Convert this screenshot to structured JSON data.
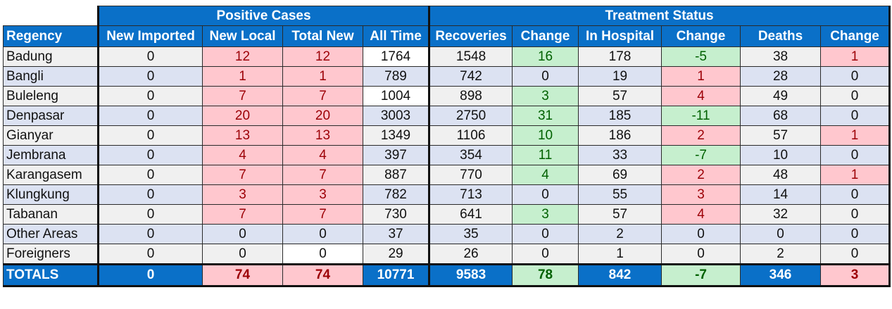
{
  "group_headers": {
    "positive": "Positive Cases",
    "treatment": "Treatment Status"
  },
  "columns": [
    "Regency",
    "New Imported",
    "New Local",
    "Total New",
    "All Time",
    "Recoveries",
    "Change",
    "In Hospital",
    "Change",
    "Deaths",
    "Change"
  ],
  "colors": {
    "header_blue": "#0a70c8",
    "red_fill": "#ffc7ce",
    "red_text": "#9c0006",
    "green_fill": "#c6efce",
    "green_text": "#006100"
  },
  "rows": [
    {
      "regency": "Badung",
      "new_imported": "0",
      "new_local": "12",
      "total_new": "12",
      "all_time": "1764",
      "recoveries": "1548",
      "rec_change": "16",
      "in_hospital": "178",
      "hosp_change": "-5",
      "deaths": "38",
      "death_change": "1"
    },
    {
      "regency": "Bangli",
      "new_imported": "0",
      "new_local": "1",
      "total_new": "1",
      "all_time": "789",
      "recoveries": "742",
      "rec_change": "0",
      "in_hospital": "19",
      "hosp_change": "1",
      "deaths": "28",
      "death_change": "0"
    },
    {
      "regency": "Buleleng",
      "new_imported": "0",
      "new_local": "7",
      "total_new": "7",
      "all_time": "1004",
      "recoveries": "898",
      "rec_change": "3",
      "in_hospital": "57",
      "hosp_change": "4",
      "deaths": "49",
      "death_change": "0"
    },
    {
      "regency": "Denpasar",
      "new_imported": "0",
      "new_local": "20",
      "total_new": "20",
      "all_time": "3003",
      "recoveries": "2750",
      "rec_change": "31",
      "in_hospital": "185",
      "hosp_change": "-11",
      "deaths": "68",
      "death_change": "0"
    },
    {
      "regency": "Gianyar",
      "new_imported": "0",
      "new_local": "13",
      "total_new": "13",
      "all_time": "1349",
      "recoveries": "1106",
      "rec_change": "10",
      "in_hospital": "186",
      "hosp_change": "2",
      "deaths": "57",
      "death_change": "1"
    },
    {
      "regency": "Jembrana",
      "new_imported": "0",
      "new_local": "4",
      "total_new": "4",
      "all_time": "397",
      "recoveries": "354",
      "rec_change": "11",
      "in_hospital": "33",
      "hosp_change": "-7",
      "deaths": "10",
      "death_change": "0"
    },
    {
      "regency": "Karangasem",
      "new_imported": "0",
      "new_local": "7",
      "total_new": "7",
      "all_time": "887",
      "recoveries": "770",
      "rec_change": "4",
      "in_hospital": "69",
      "hosp_change": "2",
      "deaths": "48",
      "death_change": "1"
    },
    {
      "regency": "Klungkung",
      "new_imported": "0",
      "new_local": "3",
      "total_new": "3",
      "all_time": "782",
      "recoveries": "713",
      "rec_change": "0",
      "in_hospital": "55",
      "hosp_change": "3",
      "deaths": "14",
      "death_change": "0"
    },
    {
      "regency": "Tabanan",
      "new_imported": "0",
      "new_local": "7",
      "total_new": "7",
      "all_time": "730",
      "recoveries": "641",
      "rec_change": "3",
      "in_hospital": "57",
      "hosp_change": "4",
      "deaths": "32",
      "death_change": "0"
    },
    {
      "regency": "Other Areas",
      "new_imported": "0",
      "new_local": "0",
      "total_new": "0",
      "all_time": "37",
      "recoveries": "35",
      "rec_change": "0",
      "in_hospital": "2",
      "hosp_change": "0",
      "deaths": "0",
      "death_change": "0"
    },
    {
      "regency": "Foreigners",
      "new_imported": "0",
      "new_local": "0",
      "total_new": "0",
      "all_time": "29",
      "recoveries": "26",
      "rec_change": "0",
      "in_hospital": "1",
      "hosp_change": "0",
      "deaths": "2",
      "death_change": "0"
    }
  ],
  "totals": {
    "label": "TOTALS",
    "new_imported": "0",
    "new_local": "74",
    "total_new": "74",
    "all_time": "10771",
    "recoveries": "9583",
    "rec_change": "78",
    "in_hospital": "842",
    "hosp_change": "-7",
    "deaths": "346",
    "death_change": "3"
  }
}
